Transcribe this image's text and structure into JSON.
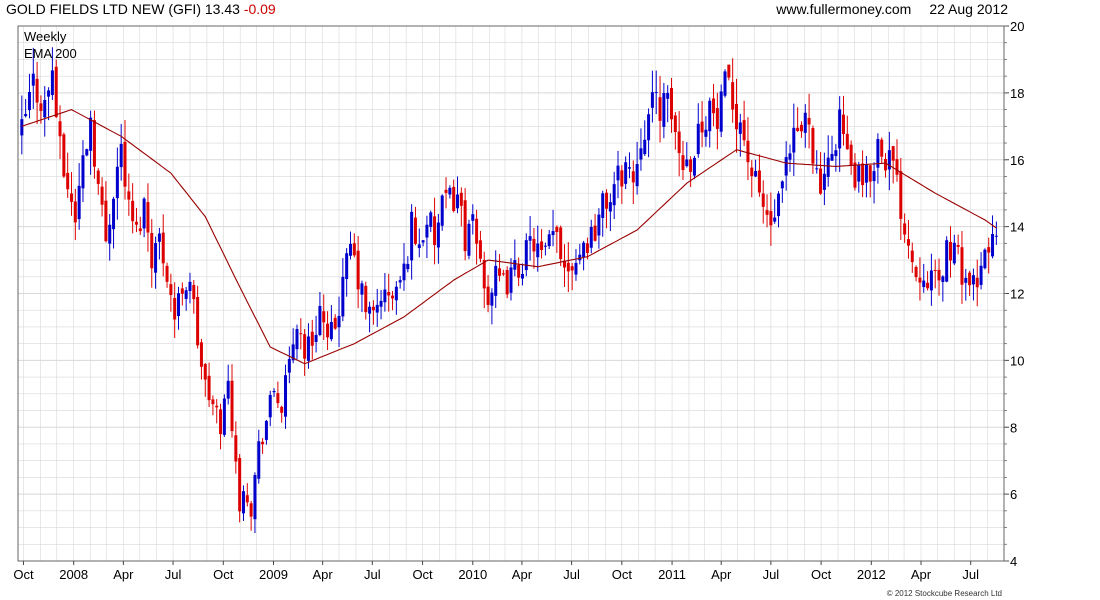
{
  "header": {
    "title": "GOLD FIELDS LTD NEW (GFI)",
    "last": "13.43",
    "change": "-0.09",
    "site": "www.fullermoney.com",
    "date": "22 Aug 2012"
  },
  "legend": {
    "line1": "Weekly",
    "line2": "EMA 200"
  },
  "copyright": "© 2012 Stockcube Research Ltd",
  "colors": {
    "up": "#0000cc",
    "down": "#dd0000",
    "ema": "#990000",
    "grid": "#d8d8d8",
    "legend_weekly": "#0000aa",
    "legend_ema": "#aa3333"
  },
  "chart_data": {
    "type": "candlestick",
    "interval": "weekly",
    "series_labels": [
      "Weekly",
      "EMA 200"
    ],
    "ylim": [
      4,
      20
    ],
    "y_ticks": [
      4,
      6,
      8,
      10,
      12,
      14,
      16,
      18,
      20
    ],
    "y_axis_position": "right",
    "x_tick_labels": [
      "Oct",
      "2008",
      "Apr",
      "Jul",
      "Oct",
      "2009",
      "Apr",
      "Jul",
      "Oct",
      "2010",
      "Apr",
      "Jul",
      "Oct",
      "2011",
      "Apr",
      "Jul",
      "Oct",
      "2012",
      "Apr",
      "Jul"
    ],
    "x_tick_dates": [
      "2007-10-01",
      "2008-01-01",
      "2008-04-01",
      "2008-07-01",
      "2008-10-01",
      "2009-01-01",
      "2009-04-01",
      "2009-07-01",
      "2009-10-01",
      "2010-01-01",
      "2010-04-01",
      "2010-07-01",
      "2010-10-01",
      "2011-01-01",
      "2011-04-01",
      "2011-07-01",
      "2011-10-01",
      "2012-01-01",
      "2012-04-01",
      "2012-07-01"
    ],
    "xlim": [
      "2007-09-21",
      "2012-08-31"
    ],
    "grid": true,
    "price_key_points": [
      [
        "2007-09-28",
        16.8
      ],
      [
        "2007-10-19",
        18.3
      ],
      [
        "2007-11-09",
        17.6
      ],
      [
        "2007-11-23",
        18.7
      ],
      [
        "2007-12-07",
        16.2
      ],
      [
        "2007-12-21",
        15.2
      ],
      [
        "2008-01-04",
        14.3
      ],
      [
        "2008-01-18",
        16.0
      ],
      [
        "2008-02-01",
        17.3
      ],
      [
        "2008-02-15",
        15.2
      ],
      [
        "2008-02-29",
        13.6
      ],
      [
        "2008-03-14",
        15.2
      ],
      [
        "2008-03-28",
        16.4
      ],
      [
        "2008-04-11",
        14.5
      ],
      [
        "2008-04-25",
        13.8
      ],
      [
        "2008-05-09",
        14.7
      ],
      [
        "2008-05-23",
        13.2
      ],
      [
        "2008-06-06",
        13.6
      ],
      [
        "2008-06-20",
        12.7
      ],
      [
        "2008-07-04",
        11.3
      ],
      [
        "2008-07-18",
        12.2
      ],
      [
        "2008-08-01",
        12.5
      ],
      [
        "2008-08-15",
        10.6
      ],
      [
        "2008-08-29",
        9.2
      ],
      [
        "2008-09-12",
        8.6
      ],
      [
        "2008-09-26",
        8.1
      ],
      [
        "2008-10-10",
        9.3
      ],
      [
        "2008-10-24",
        7.1
      ],
      [
        "2008-10-31",
        5.3
      ],
      [
        "2008-11-07",
        6.4
      ],
      [
        "2008-11-21",
        5.6
      ],
      [
        "2008-12-05",
        7.4
      ],
      [
        "2008-12-19",
        8.2
      ],
      [
        "2009-01-02",
        9.1
      ],
      [
        "2009-01-16",
        8.6
      ],
      [
        "2009-01-30",
        9.8
      ],
      [
        "2009-02-13",
        11.2
      ],
      [
        "2009-02-27",
        10.3
      ],
      [
        "2009-03-13",
        10.6
      ],
      [
        "2009-03-27",
        11.6
      ],
      [
        "2009-04-10",
        10.4
      ],
      [
        "2009-04-24",
        11.1
      ],
      [
        "2009-05-08",
        12.2
      ],
      [
        "2009-05-22",
        13.4
      ],
      [
        "2009-06-05",
        12.4
      ],
      [
        "2009-06-19",
        11.5
      ],
      [
        "2009-07-03",
        11.3
      ],
      [
        "2009-07-17",
        12.0
      ],
      [
        "2009-07-31",
        11.8
      ],
      [
        "2009-08-14",
        12.1
      ],
      [
        "2009-08-28",
        12.6
      ],
      [
        "2009-09-11",
        14.1
      ],
      [
        "2009-09-25",
        13.4
      ],
      [
        "2009-10-09",
        14.3
      ],
      [
        "2009-10-23",
        13.6
      ],
      [
        "2009-11-06",
        14.5
      ],
      [
        "2009-11-20",
        14.8
      ],
      [
        "2009-12-04",
        15.0
      ],
      [
        "2009-12-18",
        13.7
      ],
      [
        "2010-01-01",
        13.9
      ],
      [
        "2010-01-15",
        13.0
      ],
      [
        "2010-01-29",
        11.9
      ],
      [
        "2010-02-12",
        12.4
      ],
      [
        "2010-02-26",
        12.2
      ],
      [
        "2010-03-12",
        12.5
      ],
      [
        "2010-03-26",
        12.8
      ],
      [
        "2010-04-09",
        13.2
      ],
      [
        "2010-04-23",
        13.6
      ],
      [
        "2010-05-07",
        13.0
      ],
      [
        "2010-05-21",
        13.4
      ],
      [
        "2010-06-04",
        13.8
      ],
      [
        "2010-06-18",
        12.9
      ],
      [
        "2010-07-02",
        13.0
      ],
      [
        "2010-07-16",
        13.3
      ],
      [
        "2010-07-30",
        13.6
      ],
      [
        "2010-08-13",
        14.0
      ],
      [
        "2010-08-27",
        14.6
      ],
      [
        "2010-09-10",
        14.9
      ],
      [
        "2010-09-24",
        15.4
      ],
      [
        "2010-10-08",
        15.9
      ],
      [
        "2010-10-22",
        15.4
      ],
      [
        "2010-11-05",
        16.8
      ],
      [
        "2010-11-19",
        17.3
      ],
      [
        "2010-12-03",
        17.8
      ],
      [
        "2010-12-17",
        17.6
      ],
      [
        "2010-12-31",
        17.4
      ],
      [
        "2011-01-14",
        16.2
      ],
      [
        "2011-01-28",
        15.9
      ],
      [
        "2011-02-11",
        16.4
      ],
      [
        "2011-02-25",
        17.2
      ],
      [
        "2011-03-11",
        17.6
      ],
      [
        "2011-03-25",
        17.0
      ],
      [
        "2011-04-08",
        18.1
      ],
      [
        "2011-04-22",
        17.7
      ],
      [
        "2011-05-06",
        17.2
      ],
      [
        "2011-05-20",
        16.1
      ],
      [
        "2011-06-03",
        15.2
      ],
      [
        "2011-06-17",
        14.6
      ],
      [
        "2011-07-01",
        14.0
      ],
      [
        "2011-07-15",
        14.6
      ],
      [
        "2011-07-29",
        15.6
      ],
      [
        "2011-08-12",
        16.5
      ],
      [
        "2011-08-26",
        16.9
      ],
      [
        "2011-09-09",
        17.4
      ],
      [
        "2011-09-23",
        15.4
      ],
      [
        "2011-10-07",
        15.1
      ],
      [
        "2011-10-21",
        16.2
      ],
      [
        "2011-11-04",
        17.4
      ],
      [
        "2011-11-18",
        16.0
      ],
      [
        "2011-12-02",
        15.5
      ],
      [
        "2011-12-16",
        15.2
      ],
      [
        "2011-12-30",
        15.6
      ],
      [
        "2012-01-13",
        16.5
      ],
      [
        "2012-01-27",
        16.2
      ],
      [
        "2012-02-10",
        15.8
      ],
      [
        "2012-02-24",
        14.6
      ],
      [
        "2012-03-09",
        13.6
      ],
      [
        "2012-03-23",
        12.6
      ],
      [
        "2012-04-06",
        12.8
      ],
      [
        "2012-04-20",
        12.4
      ],
      [
        "2012-05-04",
        12.2
      ],
      [
        "2012-05-18",
        13.4
      ],
      [
        "2012-06-01",
        13.2
      ],
      [
        "2012-06-15",
        12.7
      ],
      [
        "2012-06-29",
        12.3
      ],
      [
        "2012-07-13",
        12.0
      ],
      [
        "2012-07-27",
        13.2
      ],
      [
        "2012-08-10",
        13.7
      ],
      [
        "2012-08-22",
        13.43
      ]
    ],
    "ema_key_points": [
      [
        "2007-09-28",
        17.0
      ],
      [
        "2007-12-28",
        17.5
      ],
      [
        "2008-03-28",
        16.7
      ],
      [
        "2008-06-27",
        15.6
      ],
      [
        "2008-08-29",
        14.3
      ],
      [
        "2008-10-31",
        12.2
      ],
      [
        "2008-12-26",
        10.4
      ],
      [
        "2009-02-27",
        9.9
      ],
      [
        "2009-05-29",
        10.5
      ],
      [
        "2009-08-28",
        11.3
      ],
      [
        "2009-11-27",
        12.4
      ],
      [
        "2010-01-29",
        13.0
      ],
      [
        "2010-04-30",
        12.8
      ],
      [
        "2010-07-30",
        13.1
      ],
      [
        "2010-10-29",
        13.9
      ],
      [
        "2011-01-28",
        15.3
      ],
      [
        "2011-04-29",
        16.3
      ],
      [
        "2011-07-29",
        15.9
      ],
      [
        "2011-10-28",
        15.8
      ],
      [
        "2012-01-27",
        15.9
      ],
      [
        "2012-04-27",
        15.0
      ],
      [
        "2012-07-27",
        14.2
      ],
      [
        "2012-08-22",
        13.9
      ]
    ]
  }
}
